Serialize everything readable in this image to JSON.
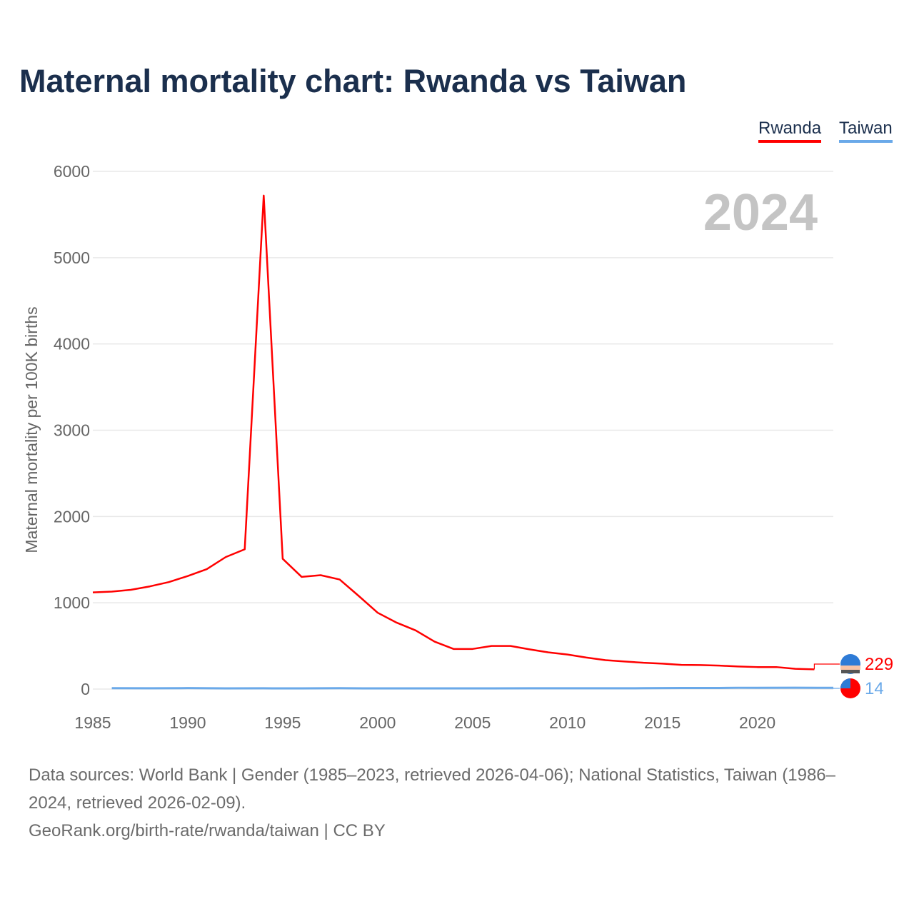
{
  "chart_data": {
    "type": "line",
    "title": "Maternal mortality chart: Rwanda vs Taiwan",
    "ylabel": "Maternal mortality per 100K births",
    "xlabel": "",
    "year_watermark": "2024",
    "xlim": [
      1985,
      2024
    ],
    "ylim": [
      0,
      6000
    ],
    "xticks": [
      1985,
      1990,
      1995,
      2000,
      2005,
      2010,
      2015,
      2020
    ],
    "yticks": [
      0,
      1000,
      2000,
      3000,
      4000,
      5000,
      6000
    ],
    "grid": true,
    "legend": "top-right",
    "series": [
      {
        "name": "Rwanda",
        "color": "#ff0000",
        "end_label": "229",
        "x": [
          1985,
          1986,
          1987,
          1988,
          1989,
          1990,
          1991,
          1992,
          1993,
          1994,
          1995,
          1996,
          1997,
          1998,
          1999,
          2000,
          2001,
          2002,
          2003,
          2004,
          2005,
          2006,
          2007,
          2008,
          2009,
          2010,
          2011,
          2012,
          2013,
          2014,
          2015,
          2016,
          2017,
          2018,
          2019,
          2020,
          2021,
          2022,
          2023
        ],
        "y": [
          1120,
          1130,
          1150,
          1190,
          1240,
          1310,
          1390,
          1530,
          1620,
          5720,
          1510,
          1300,
          1320,
          1270,
          1080,
          885,
          770,
          680,
          550,
          465,
          465,
          500,
          500,
          460,
          425,
          400,
          365,
          335,
          320,
          305,
          295,
          280,
          278,
          272,
          262,
          255,
          255,
          235,
          229
        ]
      },
      {
        "name": "Taiwan",
        "color": "#6aa9e9",
        "end_label": "14",
        "x": [
          1986,
          1988,
          1990,
          1992,
          1994,
          1996,
          1998,
          2000,
          2002,
          2004,
          2006,
          2008,
          2010,
          2012,
          2014,
          2016,
          2018,
          2019,
          2020,
          2022,
          2024
        ],
        "y": [
          10,
          9,
          11,
          8,
          9,
          8,
          10,
          8,
          8,
          8,
          8,
          9,
          9,
          9,
          10,
          12,
          12,
          15,
          14,
          16,
          14
        ]
      }
    ]
  },
  "footer": {
    "sources": "Data sources: World Bank | Gender (1985–2023, retrieved 2026-04-06); National Statistics, Taiwan (1986–2024, retrieved 2026-02-09).",
    "credit": "GeoRank.org/birth-rate/rwanda/taiwan | CC BY"
  }
}
